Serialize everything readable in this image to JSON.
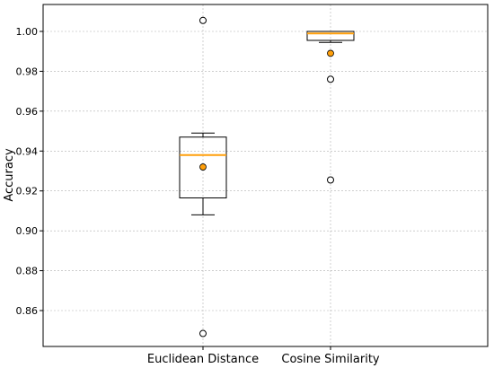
{
  "chart_data": {
    "type": "box",
    "title": "",
    "xlabel": "",
    "ylabel": "Accuracy",
    "categories": [
      "Euclidean Distance",
      "Cosine Similarity"
    ],
    "ylim": [
      0.842,
      1.0135
    ],
    "yticks": [
      0.86,
      0.88,
      0.9,
      0.92,
      0.94,
      0.96,
      0.98,
      1.0
    ],
    "ytick_labels": [
      "0.86",
      "0.88",
      "0.90",
      "0.92",
      "0.94",
      "0.96",
      "0.98",
      "1.00"
    ],
    "grid": true,
    "boxes": [
      {
        "category": "Euclidean Distance",
        "whisker_low": 0.908,
        "q1": 0.9165,
        "median": 0.938,
        "q3": 0.947,
        "whisker_high": 0.949,
        "mean": 0.932,
        "outliers": [
          1.0055,
          0.8485
        ]
      },
      {
        "category": "Cosine Similarity",
        "whisker_low": 0.9945,
        "q1": 0.9955,
        "median": 0.999,
        "q3": 1.0,
        "whisker_high": 1.0,
        "mean": 0.989,
        "outliers": [
          0.976,
          0.9255
        ]
      }
    ],
    "colors": {
      "box": "#000000",
      "median": "#ff9f0a",
      "mean_fill": "#ff9f0a",
      "outlier_fill": "#ffffff",
      "grid": "#b0b0b0"
    }
  }
}
